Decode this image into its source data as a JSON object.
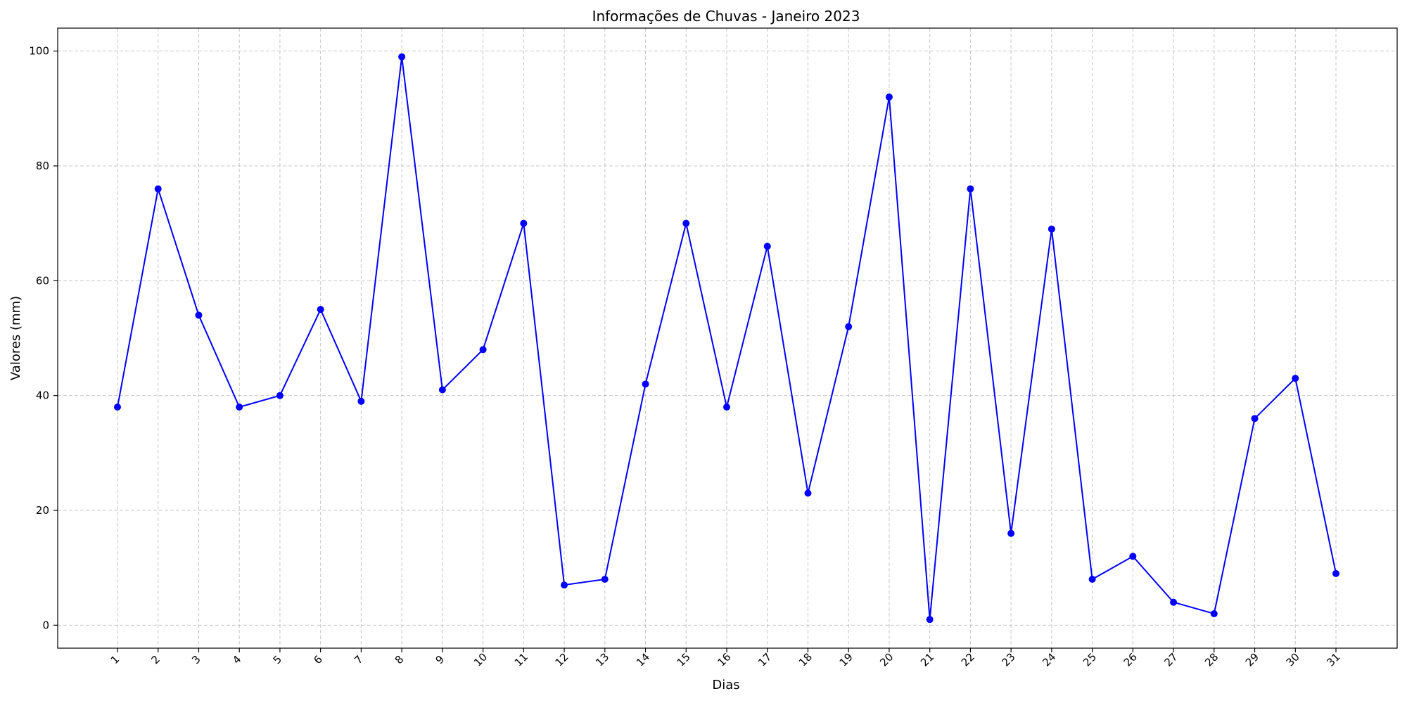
{
  "chart_data": {
    "type": "line",
    "title": "Informações de Chuvas - Janeiro 2023",
    "xlabel": "Dias",
    "ylabel": "Valores (mm)",
    "categories": [
      "1",
      "2",
      "3",
      "4",
      "5",
      "6",
      "7",
      "8",
      "9",
      "10",
      "11",
      "12",
      "13",
      "14",
      "15",
      "16",
      "17",
      "18",
      "19",
      "20",
      "21",
      "22",
      "23",
      "24",
      "25",
      "26",
      "27",
      "28",
      "29",
      "30",
      "31"
    ],
    "values": [
      38,
      76,
      54,
      38,
      40,
      55,
      39,
      99,
      41,
      48,
      70,
      7,
      8,
      42,
      70,
      38,
      66,
      23,
      52,
      92,
      1,
      76,
      16,
      69,
      8,
      12,
      4,
      2,
      36,
      43,
      9
    ],
    "yticks": [
      0,
      20,
      40,
      60,
      80,
      100
    ],
    "ylim": [
      -4,
      104
    ],
    "grid": true,
    "line_color": "#0000ff",
    "marker_color": "#0000ff"
  }
}
